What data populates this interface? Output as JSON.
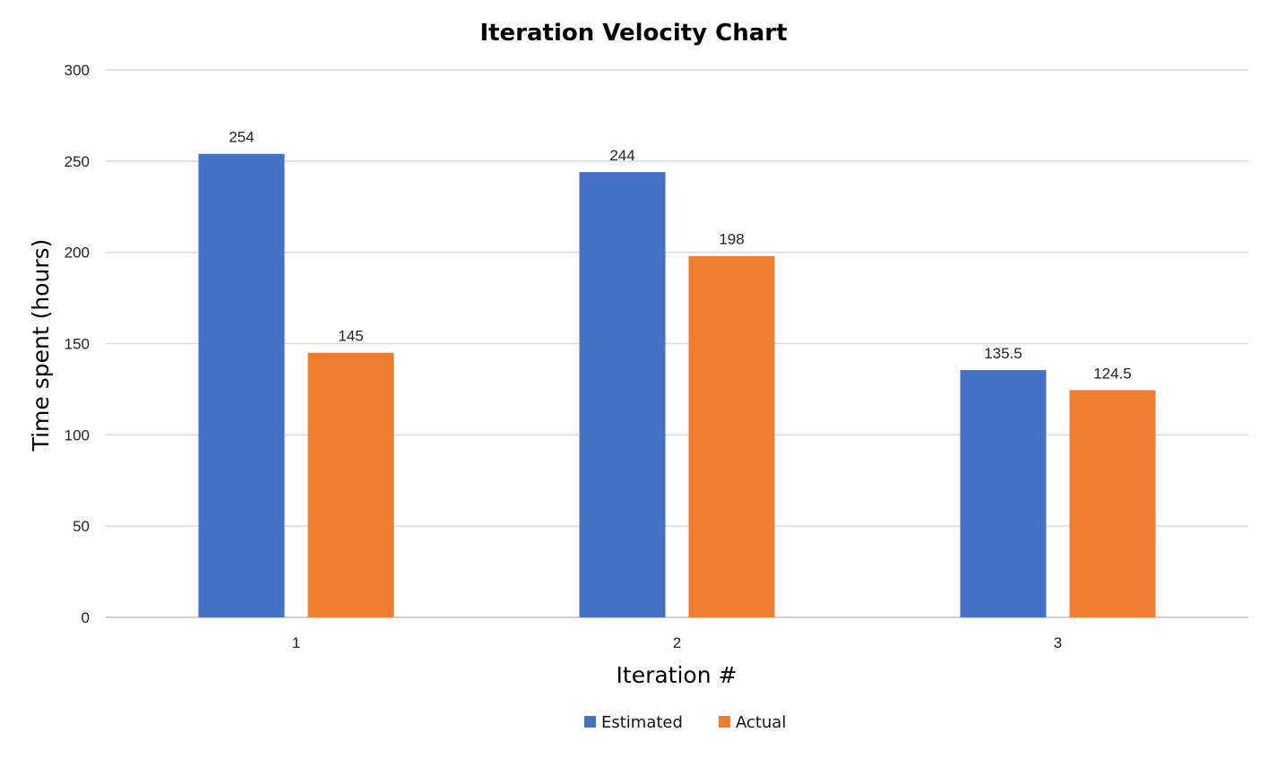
{
  "chart_data": {
    "type": "bar",
    "title": "Iteration Velocity Chart",
    "xlabel": "Iteration #",
    "ylabel": "Time spent (hours)",
    "categories": [
      "1",
      "2",
      "3"
    ],
    "series": [
      {
        "name": "Estimated",
        "color": "#4472C4",
        "values": [
          254,
          244,
          135.5
        ]
      },
      {
        "name": "Actual",
        "color": "#ED7D31",
        "values": [
          145,
          198,
          124.5
        ]
      }
    ],
    "ylim": [
      0,
      300
    ],
    "yticks": [
      0,
      50,
      100,
      150,
      200,
      250,
      300
    ],
    "grid": true,
    "legend_position": "bottom"
  }
}
